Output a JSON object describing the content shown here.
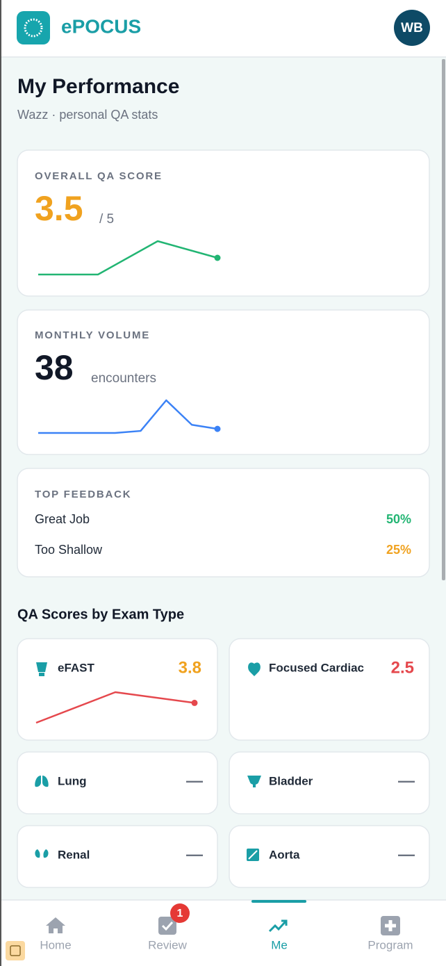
{
  "header": {
    "brand": "ePOCUS",
    "avatar": "WB"
  },
  "page": {
    "title": "My Performance",
    "subtitle": "Wazz · personal QA stats"
  },
  "overall": {
    "label": "OVERALL QA SCORE",
    "score": 3.5,
    "out_of": "/ 5",
    "trend": [
      3,
      3,
      4,
      3.5
    ]
  },
  "volume": {
    "label": "MONTHLY VOLUME",
    "count": 38,
    "unit": "encounters",
    "trend": [
      36,
      36,
      36,
      36,
      37,
      52,
      40,
      38
    ]
  },
  "feedback": {
    "label": "TOP FEEDBACK",
    "items": [
      {
        "name": "Great Job",
        "share": "50%"
      },
      {
        "name": "Too Shallow",
        "share": "25%"
      }
    ]
  },
  "exam_types": {
    "heading": "QA Scores by Exam Type",
    "items": [
      {
        "name": "eFAST",
        "score": 3.8,
        "trend": [
          2.5,
          4.5,
          3.8
        ]
      },
      {
        "name": "Focused Cardiac",
        "score": 2.5
      },
      {
        "name": "Lung",
        "score": "—"
      },
      {
        "name": "Bladder",
        "score": "—"
      },
      {
        "name": "Renal",
        "score": "—"
      },
      {
        "name": "Aorta",
        "score": "—"
      }
    ]
  },
  "nav": {
    "items": [
      {
        "label": "Home"
      },
      {
        "label": "Review",
        "badge": 1
      },
      {
        "label": "Me"
      },
      {
        "label": "Program"
      }
    ]
  }
}
